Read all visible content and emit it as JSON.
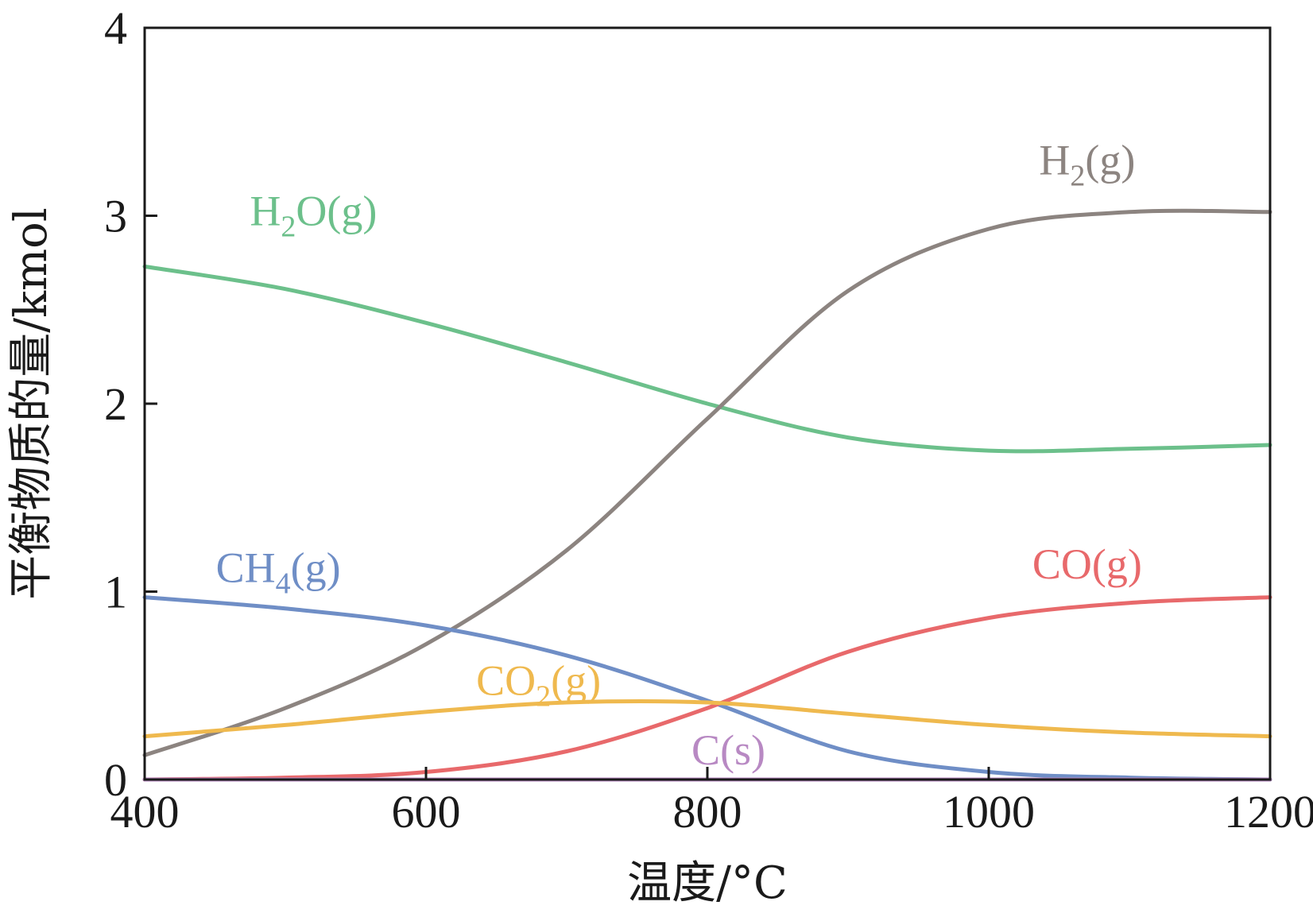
{
  "chart_data": {
    "type": "line",
    "title": "",
    "xlabel": "温度/°C",
    "ylabel": "平衡物质的量/kmol",
    "xlim": [
      400,
      1200
    ],
    "ylim": [
      0,
      4
    ],
    "xticks": [
      400,
      600,
      800,
      1000,
      1200
    ],
    "yticks": [
      0,
      1,
      2,
      3,
      4
    ],
    "grid": false,
    "series": [
      {
        "name": "H2O(g)",
        "label_main": "H",
        "label_sub": "2",
        "label_rest": "O(g)",
        "color": "#6cc08b",
        "x": [
          400,
          500,
          600,
          700,
          800,
          900,
          1000,
          1100,
          1200
        ],
        "y": [
          2.73,
          2.61,
          2.43,
          2.22,
          2.0,
          1.82,
          1.75,
          1.76,
          1.78
        ]
      },
      {
        "name": "H2(g)",
        "label_main": "H",
        "label_sub": "2",
        "label_rest": "(g)",
        "color": "#8c8480",
        "x": [
          400,
          500,
          600,
          700,
          800,
          900,
          1000,
          1100,
          1200
        ],
        "y": [
          0.13,
          0.38,
          0.72,
          1.22,
          1.92,
          2.6,
          2.93,
          3.02,
          3.02
        ]
      },
      {
        "name": "CH4(g)",
        "label_main": "CH",
        "label_sub": "4",
        "label_rest": "(g)",
        "color": "#6f8ec6",
        "x": [
          400,
          500,
          600,
          700,
          800,
          900,
          1000,
          1100,
          1200
        ],
        "y": [
          0.97,
          0.91,
          0.82,
          0.66,
          0.42,
          0.15,
          0.04,
          0.01,
          0.0
        ]
      },
      {
        "name": "CO(g)",
        "label_main": "CO(g)",
        "label_sub": "",
        "label_rest": "",
        "color": "#e8696b",
        "x": [
          400,
          500,
          600,
          700,
          800,
          900,
          1000,
          1100,
          1200
        ],
        "y": [
          0.0,
          0.01,
          0.04,
          0.15,
          0.38,
          0.68,
          0.86,
          0.94,
          0.97
        ]
      },
      {
        "name": "CO2(g)",
        "label_main": "CO",
        "label_sub": "2",
        "label_rest": "(g)",
        "color": "#efb94e",
        "x": [
          400,
          500,
          600,
          700,
          800,
          900,
          1000,
          1100,
          1200
        ],
        "y": [
          0.23,
          0.29,
          0.36,
          0.41,
          0.41,
          0.35,
          0.29,
          0.25,
          0.23
        ]
      },
      {
        "name": "C(s)",
        "label_main": "C(s)",
        "label_sub": "",
        "label_rest": "",
        "color": "#b889c3",
        "x": [
          400,
          600,
          800,
          1000,
          1200
        ],
        "y": [
          0.0,
          0.0,
          0.0,
          0.0,
          0.0
        ]
      }
    ]
  }
}
